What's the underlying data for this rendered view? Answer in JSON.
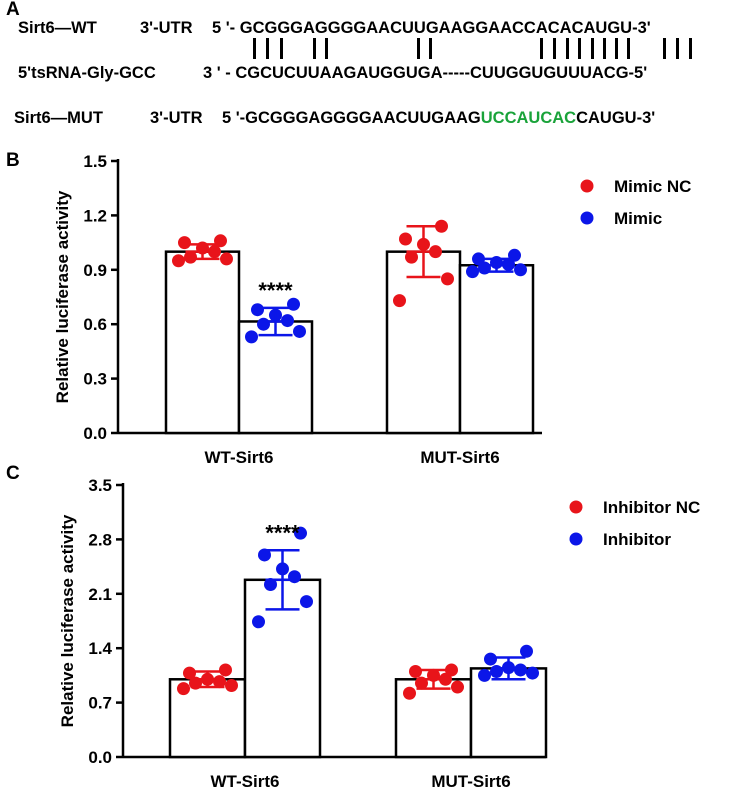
{
  "panel_a": {
    "label": "A",
    "wt": {
      "name": "Sirt6—WT",
      "region": "3'-UTR",
      "sequence": "5 '- GCGGGAGGGGAACUUGAAGGAACCACACAUGU-3'"
    },
    "trna": {
      "name": "5'tsRNA-Gly-GCC",
      "sequence": "3 ' - CGCUCUUAAGAUGGUGA-----CUUGGUGUUUACG-5'"
    },
    "mut": {
      "name": "Sirt6—MUT",
      "region": "3'-UTR",
      "seq_before": "5 '-GCGGGAGGGGAACUUGAAG",
      "seq_mut": "UCCAUCAC",
      "seq_after": "CAUGU-3'",
      "mut_color": "#1aa33a"
    }
  },
  "chart_data": [
    {
      "panel": "B",
      "type": "bar",
      "ylabel": "Relative luciferase activity",
      "ylim": [
        0,
        1.5
      ],
      "yticks": [
        "0.0",
        "0.3",
        "0.6",
        "0.9",
        "1.2",
        "1.5"
      ],
      "categories": [
        "WT-Sirt6",
        "MUT-Sirt6"
      ],
      "series": [
        {
          "name": "Mimic NC",
          "color": "#e8141a",
          "values": [
            1.0,
            1.0
          ],
          "sd": [
            0.04,
            0.14
          ],
          "points": [
            [
              0.95,
              0.96,
              0.97,
              1.0,
              1.02,
              1.05,
              1.06
            ],
            [
              0.73,
              0.85,
              0.97,
              1.0,
              1.04,
              1.07,
              1.14
            ]
          ]
        },
        {
          "name": "Mimic",
          "color": "#0b16e8",
          "values": [
            0.615,
            0.925
          ],
          "sd": [
            0.075,
            0.035
          ],
          "points": [
            [
              0.53,
              0.56,
              0.6,
              0.62,
              0.65,
              0.68,
              0.71
            ],
            [
              0.89,
              0.9,
              0.91,
              0.93,
              0.94,
              0.96,
              0.98
            ]
          ]
        }
      ],
      "annotations": [
        {
          "category": "WT-Sirt6",
          "series": "Mimic",
          "text": "****"
        }
      ],
      "legend_position": "top-right"
    },
    {
      "panel": "C",
      "type": "bar",
      "ylabel": "Relative luciferase activity",
      "ylim": [
        0,
        3.5
      ],
      "yticks": [
        "0.0",
        "0.7",
        "1.4",
        "2.1",
        "2.8",
        "3.5"
      ],
      "categories": [
        "WT-Sirt6",
        "MUT-Sirt6"
      ],
      "series": [
        {
          "name": "Inhibitor NC",
          "color": "#e8141a",
          "values": [
            1.0,
            1.0
          ],
          "sd": [
            0.1,
            0.12
          ],
          "points": [
            [
              0.88,
              0.92,
              0.95,
              0.97,
              1.0,
              1.08,
              1.12
            ],
            [
              0.82,
              0.9,
              0.95,
              1.0,
              1.05,
              1.1,
              1.12
            ]
          ]
        },
        {
          "name": "Inhibitor",
          "color": "#0b16e8",
          "values": [
            2.28,
            1.14
          ],
          "sd": [
            0.38,
            0.14
          ],
          "points": [
            [
              1.74,
              2.0,
              2.22,
              2.32,
              2.42,
              2.6,
              2.88
            ],
            [
              1.05,
              1.08,
              1.1,
              1.12,
              1.15,
              1.26,
              1.36
            ]
          ]
        }
      ],
      "annotations": [
        {
          "category": "WT-Sirt6",
          "series": "Inhibitor",
          "text": "****"
        }
      ],
      "legend_position": "top-right"
    }
  ]
}
